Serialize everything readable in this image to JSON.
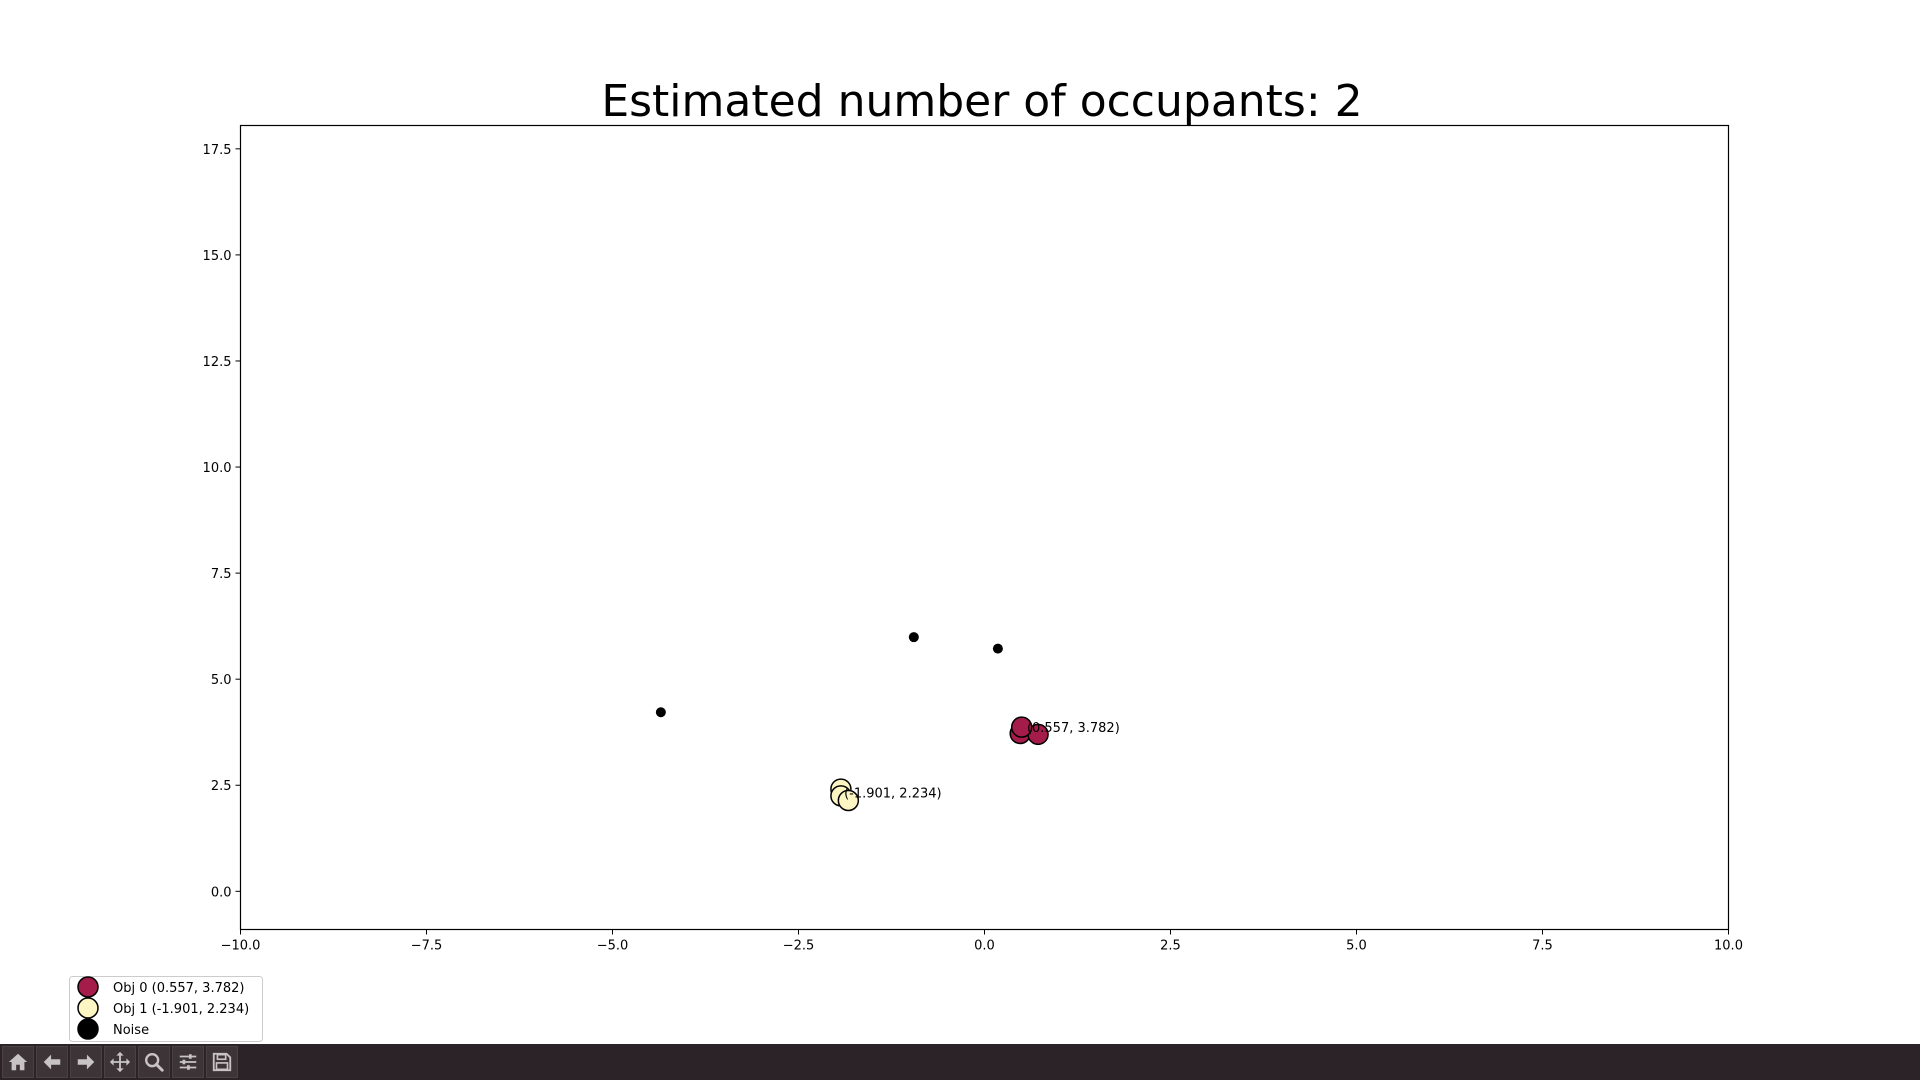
{
  "colors": {
    "obj0": "#a51c4a",
    "obj1": "#fdf6c3",
    "noise": "#000000",
    "toolbar_bg": "#2b2327",
    "toolbar_icon": "#c8c3c5"
  },
  "toolbar": {
    "buttons": [
      "home-icon",
      "back-arrow-icon",
      "forward-arrow-icon",
      "pan-icon",
      "zoom-icon",
      "configure-subplots-icon",
      "save-icon"
    ]
  },
  "chart_data": {
    "type": "scatter",
    "title": "Estimated number of occupants: 2",
    "xlabel": "",
    "ylabel": "",
    "xlim": [
      -10,
      10
    ],
    "ylim": [
      -0.9,
      18.05
    ],
    "xticks": [
      -10,
      -7.5,
      -5,
      -2.5,
      0,
      2.5,
      5,
      7.5,
      10
    ],
    "xtick_labels": [
      "−10.0",
      "−7.5",
      "−5.0",
      "−2.5",
      "0.0",
      "2.5",
      "5.0",
      "7.5",
      "10.0"
    ],
    "yticks": [
      0,
      2.5,
      5,
      7.5,
      10,
      12.5,
      15,
      17.5
    ],
    "ytick_labels": [
      "0.0",
      "2.5",
      "5.0",
      "7.5",
      "10.0",
      "12.5",
      "15.0",
      "17.5"
    ],
    "grid": false,
    "legend_position": "lower-left outside",
    "series": [
      {
        "name": "Obj 0 (0.557, 3.782)",
        "color_key": "obj0",
        "size": "large",
        "points": [
          [
            0.48,
            3.72
          ],
          [
            0.72,
            3.7
          ],
          [
            0.5,
            3.87
          ]
        ],
        "annotation": {
          "text": "(0.557, 3.782)",
          "x": 0.557,
          "y": 3.782
        }
      },
      {
        "name": "Obj 1 (-1.901, 2.234)",
        "color_key": "obj1",
        "size": "large",
        "points": [
          [
            -1.93,
            2.41
          ],
          [
            -1.93,
            2.25
          ],
          [
            -1.83,
            2.14
          ]
        ],
        "annotation": {
          "text": "(-1.901, 2.234)",
          "x": -1.901,
          "y": 2.234
        }
      },
      {
        "name": "Noise",
        "color_key": "noise",
        "size": "small",
        "points": [
          [
            -4.35,
            4.22
          ],
          [
            -0.95,
            5.99
          ],
          [
            0.18,
            5.72
          ]
        ]
      }
    ]
  }
}
